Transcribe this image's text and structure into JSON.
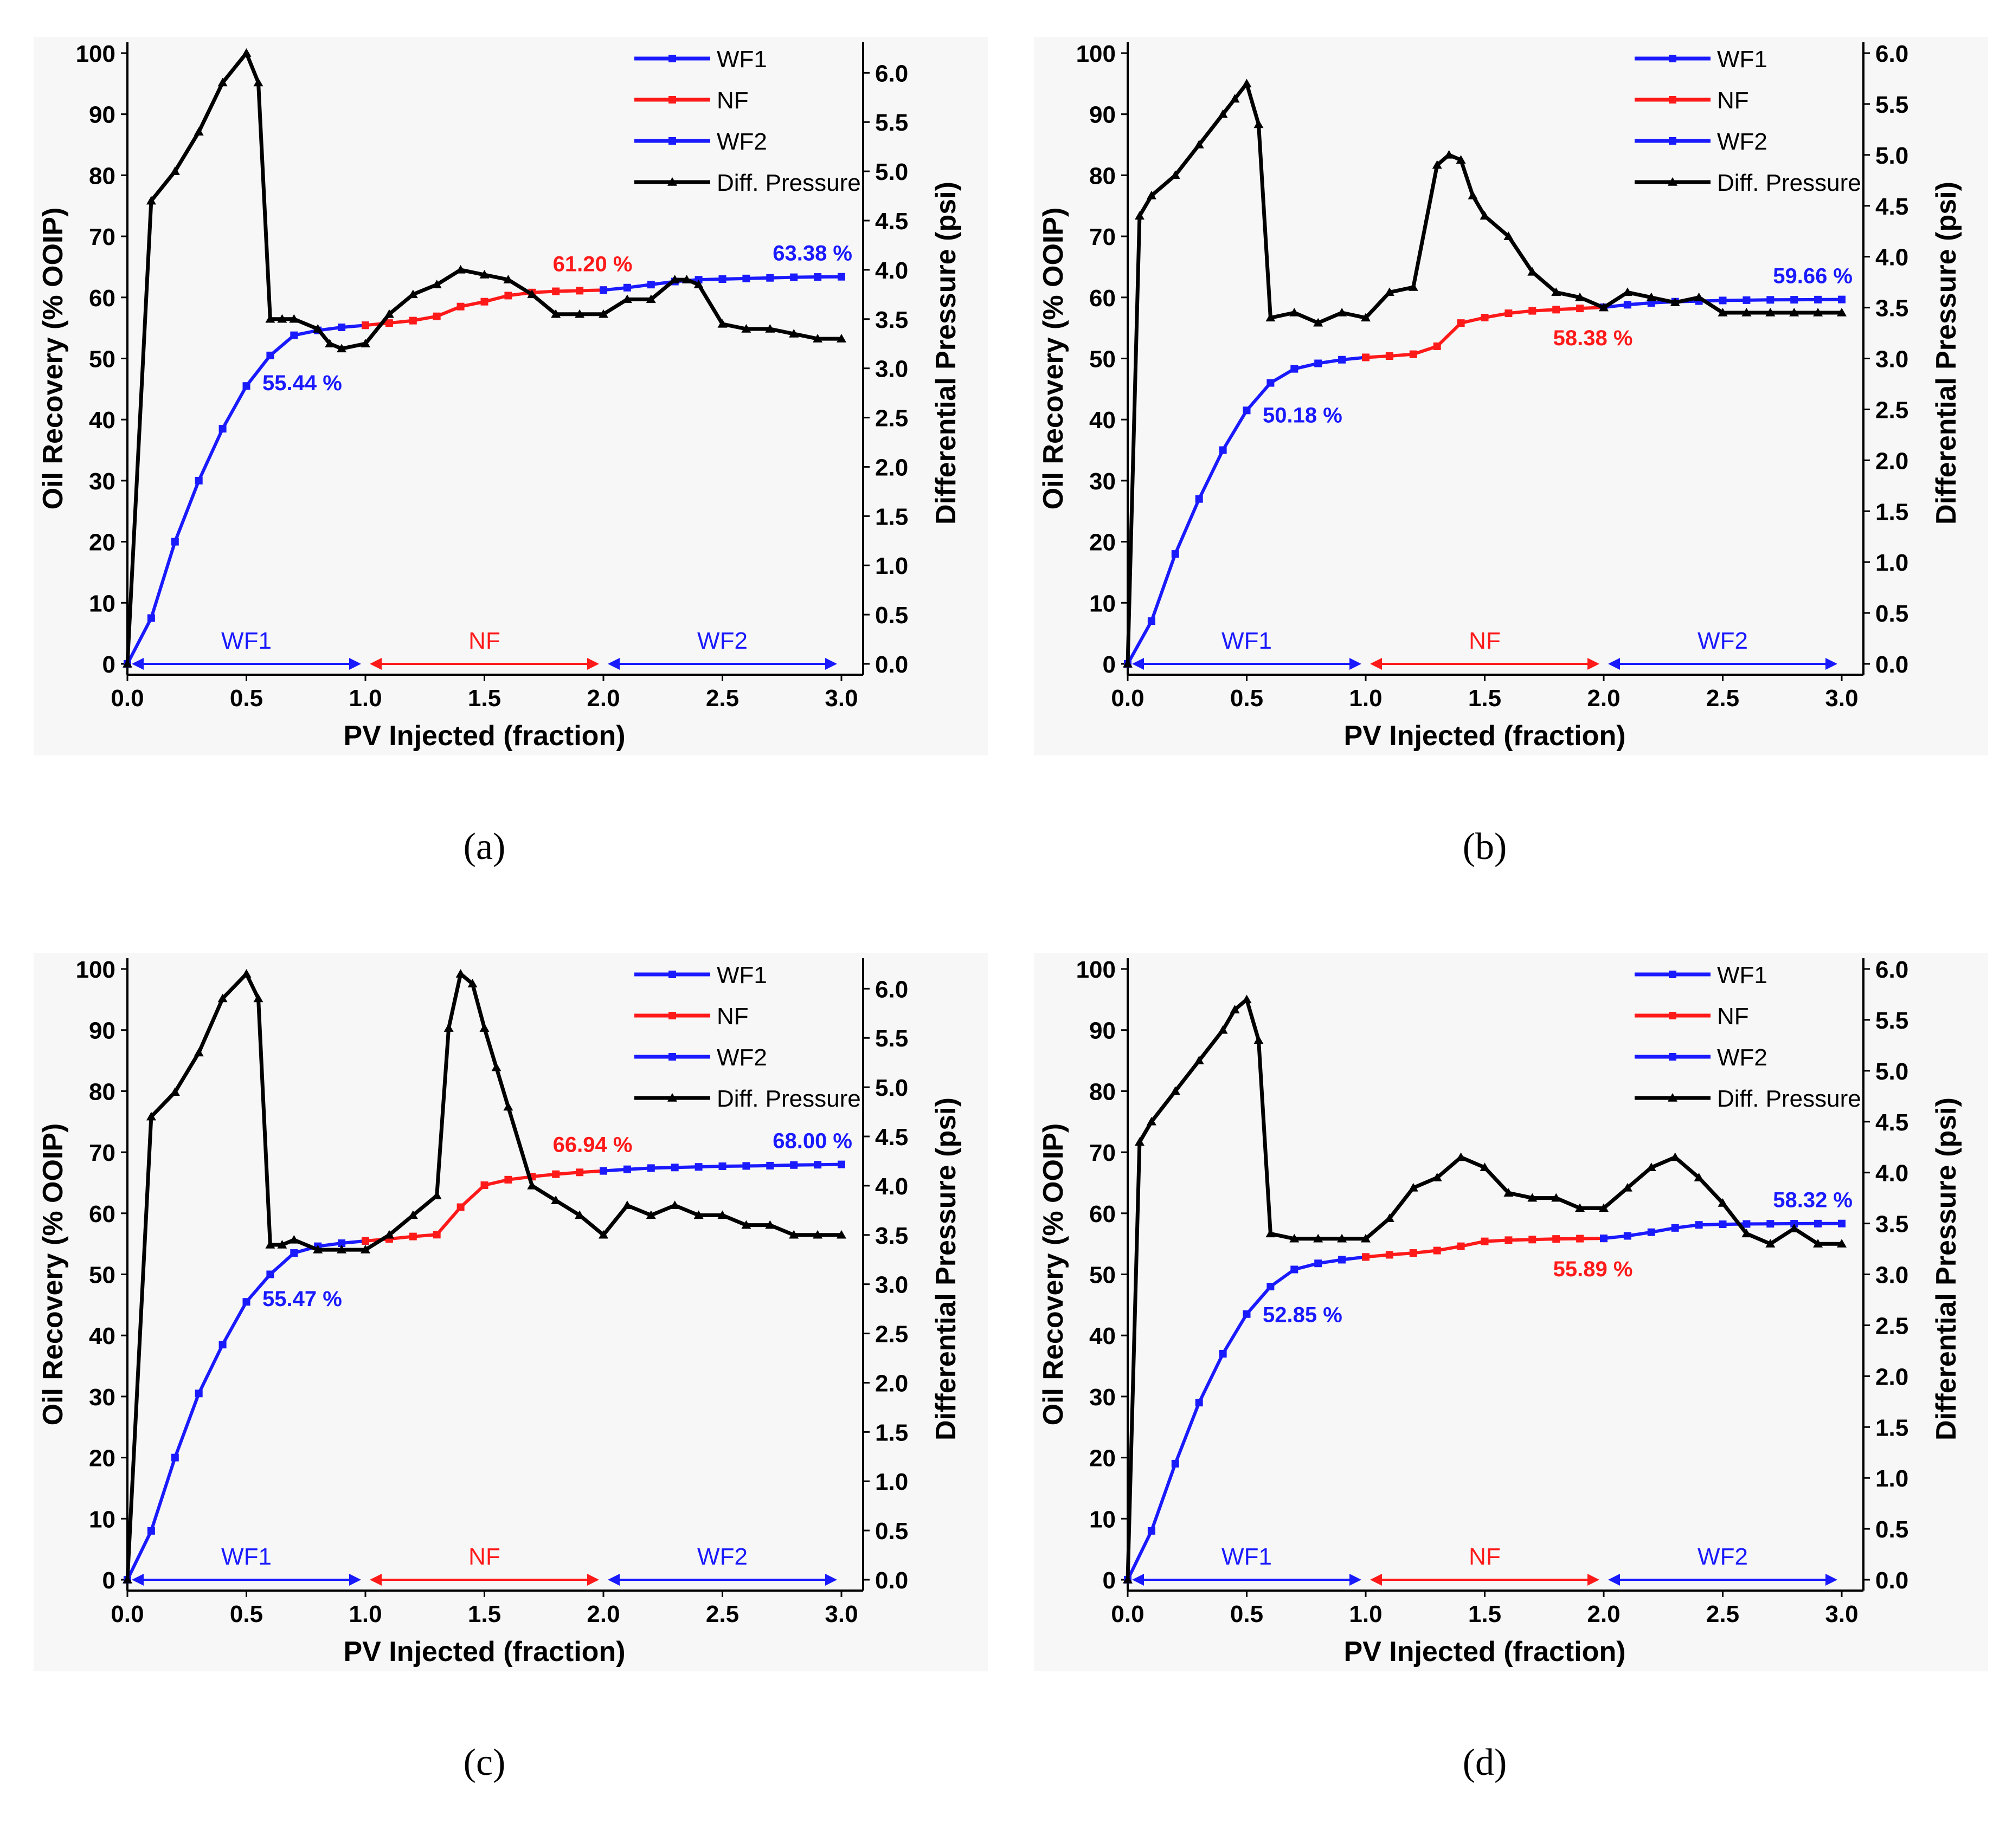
{
  "colors": {
    "wf": "#1a1aff",
    "nf": "#ff1a1a",
    "pressure": "#000000",
    "axis": "#000000",
    "panel_bg": "#f7f7f7"
  },
  "legend_labels": [
    "WF1",
    "NF",
    "WF2",
    "Diff. Pressure"
  ],
  "chart_data": [
    {
      "type": "line",
      "panel": "a",
      "caption": "(a)",
      "xlabel": "PV Injected (fraction)",
      "ylabel": "Oil Recovery (% OOIP)",
      "y2label": "Differential Pressure (psi)",
      "xlim": [
        0,
        3.0
      ],
      "ylim": [
        0,
        100
      ],
      "y2lim": [
        0,
        6.2
      ],
      "xticks": [
        "0.0",
        "0.5",
        "1.0",
        "1.5",
        "2.0",
        "2.5",
        "3.0"
      ],
      "yticks": [
        "0",
        "10",
        "20",
        "30",
        "40",
        "50",
        "60",
        "70",
        "80",
        "90",
        "100"
      ],
      "y2ticks": [
        "0.0",
        "0.5",
        "1.0",
        "1.5",
        "2.0",
        "2.5",
        "3.0",
        "3.5",
        "4.0",
        "4.5",
        "5.0",
        "5.5",
        "6.0"
      ],
      "phases": [
        "WF1",
        "NF",
        "WF2"
      ],
      "series": [
        {
          "name": "WF1",
          "color": "#1a1aff",
          "axis": "left",
          "x": [
            0,
            0.1,
            0.2,
            0.3,
            0.4,
            0.5,
            0.6,
            0.7,
            0.8,
            0.9,
            1.0
          ],
          "y": [
            0,
            7.5,
            20,
            30,
            38.5,
            45.5,
            50.5,
            53.8,
            54.6,
            55.1,
            55.44
          ]
        },
        {
          "name": "NF",
          "color": "#ff1a1a",
          "axis": "left",
          "x": [
            1.0,
            1.1,
            1.2,
            1.3,
            1.4,
            1.5,
            1.6,
            1.7,
            1.8,
            1.9,
            2.0
          ],
          "y": [
            55.44,
            55.8,
            56.2,
            56.9,
            58.5,
            59.3,
            60.3,
            60.8,
            61.0,
            61.1,
            61.2
          ]
        },
        {
          "name": "WF2",
          "color": "#1a1aff",
          "axis": "left",
          "x": [
            2.0,
            2.1,
            2.2,
            2.3,
            2.4,
            2.5,
            2.6,
            2.7,
            2.8,
            2.9,
            3.0
          ],
          "y": [
            61.2,
            61.6,
            62.1,
            62.6,
            62.9,
            63.0,
            63.1,
            63.2,
            63.3,
            63.35,
            63.38
          ]
        },
        {
          "name": "Diff. Pressure",
          "color": "#000000",
          "axis": "right",
          "x": [
            0,
            0.1,
            0.2,
            0.3,
            0.4,
            0.5,
            0.55,
            0.6,
            0.65,
            0.7,
            0.8,
            0.85,
            0.9,
            1.0,
            1.1,
            1.2,
            1.3,
            1.4,
            1.5,
            1.6,
            1.7,
            1.8,
            1.9,
            2.0,
            2.1,
            2.2,
            2.3,
            2.35,
            2.4,
            2.5,
            2.6,
            2.7,
            2.8,
            2.9,
            3.0
          ],
          "y": [
            0,
            4.7,
            5.0,
            5.4,
            5.9,
            6.2,
            5.9,
            3.5,
            3.5,
            3.5,
            3.4,
            3.25,
            3.2,
            3.25,
            3.55,
            3.75,
            3.85,
            4.0,
            3.95,
            3.9,
            3.75,
            3.55,
            3.55,
            3.55,
            3.7,
            3.7,
            3.9,
            3.9,
            3.85,
            3.45,
            3.4,
            3.4,
            3.35,
            3.3,
            3.3
          ]
        }
      ],
      "annotations": [
        {
          "text": "55.44 %",
          "x": 1.0,
          "y": 55.44,
          "color": "#1a1aff"
        },
        {
          "text": "61.20 %",
          "x": 2.0,
          "y": 61.2,
          "color": "#ff1a1a"
        },
        {
          "text": "63.38 %",
          "x": 3.0,
          "y": 63.38,
          "color": "#1a1aff"
        }
      ]
    },
    {
      "type": "line",
      "panel": "b",
      "caption": "(b)",
      "xlabel": "PV Injected (fraction)",
      "ylabel": "Oil Recovery (% OOIP)",
      "y2label": "Differential Pressure (psi)",
      "xlim": [
        0,
        3.0
      ],
      "ylim": [
        0,
        100
      ],
      "y2lim": [
        0,
        6.0
      ],
      "xticks": [
        "0.0",
        "0.5",
        "1.0",
        "1.5",
        "2.0",
        "2.5",
        "3.0"
      ],
      "yticks": [
        "0",
        "10",
        "20",
        "30",
        "40",
        "50",
        "60",
        "70",
        "80",
        "90",
        "100"
      ],
      "y2ticks": [
        "0.0",
        "0.5",
        "1.0",
        "1.5",
        "2.0",
        "2.5",
        "3.0",
        "3.5",
        "4.0",
        "4.5",
        "5.0",
        "5.5",
        "6.0"
      ],
      "phases": [
        "WF1",
        "NF",
        "WF2"
      ],
      "series": [
        {
          "name": "WF1",
          "color": "#1a1aff",
          "axis": "left",
          "x": [
            0,
            0.1,
            0.2,
            0.3,
            0.4,
            0.5,
            0.6,
            0.7,
            0.8,
            0.9,
            1.0
          ],
          "y": [
            0,
            7,
            18,
            27,
            35,
            41.5,
            46,
            48.3,
            49.2,
            49.8,
            50.18
          ]
        },
        {
          "name": "NF",
          "color": "#ff1a1a",
          "axis": "left",
          "x": [
            1.0,
            1.1,
            1.2,
            1.3,
            1.4,
            1.5,
            1.6,
            1.7,
            1.8,
            1.9,
            2.0
          ],
          "y": [
            50.18,
            50.4,
            50.7,
            52,
            55.8,
            56.7,
            57.4,
            57.8,
            58.0,
            58.2,
            58.38
          ]
        },
        {
          "name": "WF2",
          "color": "#1a1aff",
          "axis": "left",
          "x": [
            2.0,
            2.1,
            2.2,
            2.3,
            2.4,
            2.5,
            2.6,
            2.7,
            2.8,
            2.9,
            3.0
          ],
          "y": [
            58.38,
            58.8,
            59.1,
            59.3,
            59.4,
            59.5,
            59.55,
            59.6,
            59.62,
            59.64,
            59.66
          ]
        },
        {
          "name": "Diff. Pressure",
          "color": "#000000",
          "axis": "right",
          "x": [
            0,
            0.05,
            0.1,
            0.2,
            0.3,
            0.4,
            0.45,
            0.5,
            0.55,
            0.6,
            0.7,
            0.8,
            0.9,
            1.0,
            1.1,
            1.2,
            1.3,
            1.35,
            1.4,
            1.45,
            1.5,
            1.6,
            1.7,
            1.8,
            1.9,
            2.0,
            2.1,
            2.2,
            2.3,
            2.4,
            2.5,
            2.6,
            2.7,
            2.8,
            2.9,
            3.0
          ],
          "y": [
            0,
            4.4,
            4.6,
            4.8,
            5.1,
            5.4,
            5.55,
            5.7,
            5.3,
            3.4,
            3.45,
            3.35,
            3.45,
            3.4,
            3.65,
            3.7,
            4.9,
            5.0,
            4.95,
            4.6,
            4.4,
            4.2,
            3.85,
            3.65,
            3.6,
            3.5,
            3.65,
            3.6,
            3.55,
            3.6,
            3.45,
            3.45,
            3.45,
            3.45,
            3.45,
            3.45
          ]
        }
      ],
      "annotations": [
        {
          "text": "50.18 %",
          "x": 1.0,
          "y": 50.18,
          "color": "#1a1aff"
        },
        {
          "text": "58.38 %",
          "x": 2.0,
          "y": 58.38,
          "color": "#ff1a1a"
        },
        {
          "text": "59.66 %",
          "x": 3.0,
          "y": 59.66,
          "color": "#1a1aff"
        }
      ]
    },
    {
      "type": "line",
      "panel": "c",
      "caption": "(c)",
      "xlabel": "PV Injected (fraction)",
      "ylabel": "Oil Recovery (% OOIP)",
      "y2label": "Differential Pressure (psi)",
      "xlim": [
        0,
        3.0
      ],
      "ylim": [
        0,
        100
      ],
      "y2lim": [
        0,
        6.2
      ],
      "xticks": [
        "0.0",
        "0.5",
        "1.0",
        "1.5",
        "2.0",
        "2.5",
        "3.0"
      ],
      "yticks": [
        "0",
        "10",
        "20",
        "30",
        "40",
        "50",
        "60",
        "70",
        "80",
        "90",
        "100"
      ],
      "y2ticks": [
        "0.0",
        "0.5",
        "1.0",
        "1.5",
        "2.0",
        "2.5",
        "3.0",
        "3.5",
        "4.0",
        "4.5",
        "5.0",
        "5.5",
        "6.0"
      ],
      "phases": [
        "WF1",
        "NF",
        "WF2"
      ],
      "series": [
        {
          "name": "WF1",
          "color": "#1a1aff",
          "axis": "left",
          "x": [
            0,
            0.1,
            0.2,
            0.3,
            0.4,
            0.5,
            0.6,
            0.7,
            0.8,
            0.9,
            1.0
          ],
          "y": [
            0,
            8,
            20,
            30.5,
            38.5,
            45.5,
            50,
            53.5,
            54.6,
            55.1,
            55.47
          ]
        },
        {
          "name": "NF",
          "color": "#ff1a1a",
          "axis": "left",
          "x": [
            1.0,
            1.1,
            1.2,
            1.3,
            1.4,
            1.5,
            1.6,
            1.7,
            1.8,
            1.9,
            2.0
          ],
          "y": [
            55.47,
            55.8,
            56.2,
            56.5,
            61,
            64.6,
            65.5,
            66.0,
            66.4,
            66.7,
            66.94
          ]
        },
        {
          "name": "WF2",
          "color": "#1a1aff",
          "axis": "left",
          "x": [
            2.0,
            2.1,
            2.2,
            2.3,
            2.4,
            2.5,
            2.6,
            2.7,
            2.8,
            2.9,
            3.0
          ],
          "y": [
            66.94,
            67.2,
            67.4,
            67.5,
            67.6,
            67.7,
            67.75,
            67.8,
            67.9,
            67.95,
            68.0
          ]
        },
        {
          "name": "Diff. Pressure",
          "color": "#000000",
          "axis": "right",
          "x": [
            0,
            0.1,
            0.2,
            0.3,
            0.4,
            0.5,
            0.55,
            0.6,
            0.65,
            0.7,
            0.8,
            0.9,
            1.0,
            1.1,
            1.2,
            1.3,
            1.35,
            1.4,
            1.45,
            1.5,
            1.55,
            1.6,
            1.7,
            1.8,
            1.9,
            2.0,
            2.1,
            2.2,
            2.3,
            2.4,
            2.5,
            2.6,
            2.7,
            2.8,
            2.9,
            3.0
          ],
          "y": [
            0,
            4.7,
            4.95,
            5.35,
            5.9,
            6.15,
            5.9,
            3.4,
            3.4,
            3.45,
            3.35,
            3.35,
            3.35,
            3.5,
            3.7,
            3.9,
            5.6,
            6.15,
            6.05,
            5.6,
            5.2,
            4.8,
            4.0,
            3.85,
            3.7,
            3.5,
            3.8,
            3.7,
            3.8,
            3.7,
            3.7,
            3.6,
            3.6,
            3.5,
            3.5,
            3.5
          ]
        }
      ],
      "annotations": [
        {
          "text": "55.47 %",
          "x": 1.0,
          "y": 55.47,
          "color": "#1a1aff"
        },
        {
          "text": "66.94 %",
          "x": 2.0,
          "y": 66.94,
          "color": "#ff1a1a"
        },
        {
          "text": "68.00 %",
          "x": 3.0,
          "y": 68.0,
          "color": "#1a1aff"
        }
      ]
    },
    {
      "type": "line",
      "panel": "d",
      "caption": "(d)",
      "xlabel": "PV Injected (fraction)",
      "ylabel": "Oil Recovery (% OOIP)",
      "y2label": "Differential Pressure (psi)",
      "xlim": [
        0,
        3.0
      ],
      "ylim": [
        0,
        100
      ],
      "y2lim": [
        0,
        6.0
      ],
      "xticks": [
        "0.0",
        "0.5",
        "1.0",
        "1.5",
        "2.0",
        "2.5",
        "3.0"
      ],
      "yticks": [
        "0",
        "10",
        "20",
        "30",
        "40",
        "50",
        "60",
        "70",
        "80",
        "90",
        "100"
      ],
      "y2ticks": [
        "0.0",
        "0.5",
        "1.0",
        "1.5",
        "2.0",
        "2.5",
        "3.0",
        "3.5",
        "4.0",
        "4.5",
        "5.0",
        "5.5",
        "6.0"
      ],
      "phases": [
        "WF1",
        "NF",
        "WF2"
      ],
      "series": [
        {
          "name": "WF1",
          "color": "#1a1aff",
          "axis": "left",
          "x": [
            0,
            0.1,
            0.2,
            0.3,
            0.4,
            0.5,
            0.6,
            0.7,
            0.8,
            0.9,
            1.0
          ],
          "y": [
            0,
            8,
            19,
            29,
            37,
            43.5,
            48,
            50.8,
            51.8,
            52.4,
            52.85
          ]
        },
        {
          "name": "NF",
          "color": "#ff1a1a",
          "axis": "left",
          "x": [
            1.0,
            1.1,
            1.2,
            1.3,
            1.4,
            1.5,
            1.6,
            1.7,
            1.8,
            1.9,
            2.0
          ],
          "y": [
            52.85,
            53.2,
            53.5,
            53.9,
            54.6,
            55.4,
            55.6,
            55.7,
            55.8,
            55.85,
            55.89
          ]
        },
        {
          "name": "WF2",
          "color": "#1a1aff",
          "axis": "left",
          "x": [
            2.0,
            2.1,
            2.2,
            2.3,
            2.4,
            2.5,
            2.6,
            2.7,
            2.8,
            2.9,
            3.0
          ],
          "y": [
            55.89,
            56.3,
            56.9,
            57.6,
            58.1,
            58.2,
            58.25,
            58.28,
            58.3,
            58.31,
            58.32
          ]
        },
        {
          "name": "Diff. Pressure",
          "color": "#000000",
          "axis": "right",
          "x": [
            0,
            0.05,
            0.1,
            0.2,
            0.3,
            0.4,
            0.45,
            0.5,
            0.55,
            0.6,
            0.7,
            0.8,
            0.9,
            1.0,
            1.1,
            1.2,
            1.3,
            1.4,
            1.5,
            1.6,
            1.7,
            1.8,
            1.9,
            2.0,
            2.1,
            2.2,
            2.3,
            2.4,
            2.5,
            2.6,
            2.7,
            2.8,
            2.9,
            3.0
          ],
          "y": [
            0,
            4.3,
            4.5,
            4.8,
            5.1,
            5.4,
            5.6,
            5.7,
            5.3,
            3.4,
            3.35,
            3.35,
            3.35,
            3.35,
            3.55,
            3.85,
            3.95,
            4.15,
            4.05,
            3.8,
            3.75,
            3.75,
            3.65,
            3.65,
            3.85,
            4.05,
            4.15,
            3.95,
            3.7,
            3.4,
            3.3,
            3.45,
            3.3,
            3.3
          ]
        }
      ],
      "annotations": [
        {
          "text": "52.85 %",
          "x": 1.0,
          "y": 52.85,
          "color": "#1a1aff"
        },
        {
          "text": "55.89 %",
          "x": 2.0,
          "y": 55.89,
          "color": "#ff1a1a"
        },
        {
          "text": "58.32 %",
          "x": 3.0,
          "y": 58.32,
          "color": "#1a1aff"
        }
      ]
    }
  ]
}
